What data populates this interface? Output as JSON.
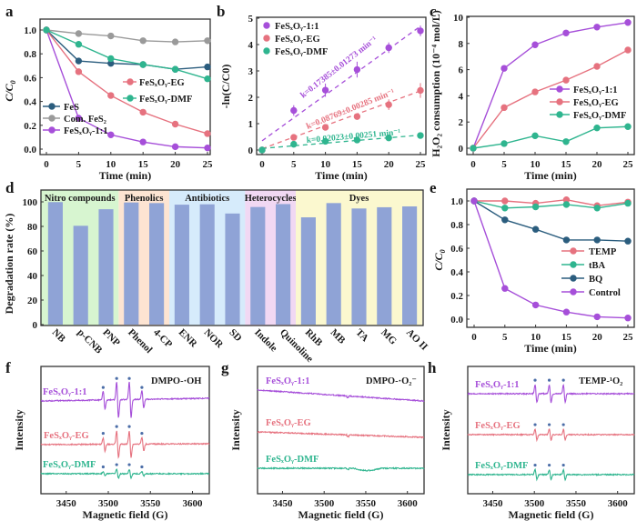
{
  "figure": {
    "panels": [
      "a",
      "b",
      "c",
      "d",
      "e",
      "f",
      "g",
      "h"
    ]
  },
  "colors": {
    "FeS": "#2b5d7e",
    "ComFeS2": "#9a9a9a",
    "FeSxOy_1_1": "#a64fd9",
    "FeSxOy_EG": "#e6727f",
    "FeSxOy_DMF": "#2fb58f",
    "bar": "#8fa3d6",
    "group_nitro": "#d7f5d0",
    "group_phenolics": "#fde4d2",
    "group_antibiotics": "#d6ebfb",
    "group_heterocycles": "#f1d8f3",
    "group_dyes": "#fbf8cf"
  },
  "chart_data": [
    {
      "panel": "a",
      "type": "line",
      "xlabel": "Time (min)",
      "ylabel": "C/C0",
      "xlim": [
        0,
        25
      ],
      "ylim": [
        0,
        1.0
      ],
      "xticks": [
        "0",
        "5",
        "10",
        "15",
        "20",
        "25"
      ],
      "yticks": [
        "0.0",
        "0.2",
        "0.4",
        "0.6",
        "0.8",
        "1.0"
      ],
      "x": [
        0,
        5,
        10,
        15,
        20,
        25
      ],
      "series": [
        {
          "name": "FeS",
          "key": "FeS",
          "values": [
            1.0,
            0.74,
            0.72,
            0.71,
            0.67,
            0.69
          ]
        },
        {
          "name": "Com. FeS2",
          "key": "ComFeS2",
          "values": [
            1.0,
            0.97,
            0.95,
            0.91,
            0.9,
            0.91
          ]
        },
        {
          "name": "FeSxOy-1:1",
          "key": "FeSxOy_1_1",
          "values": [
            1.0,
            0.26,
            0.12,
            0.06,
            0.02,
            0.01
          ]
        },
        {
          "name": "FeSxOy-EG",
          "key": "FeSxOy_EG",
          "values": [
            1.0,
            0.65,
            0.45,
            0.31,
            0.21,
            0.13
          ]
        },
        {
          "name": "FeSxOy-DMF",
          "key": "FeSxOy_DMF",
          "values": [
            1.0,
            0.88,
            0.76,
            0.71,
            0.67,
            0.59
          ]
        }
      ],
      "legend_left": [
        "FeS",
        "Com. FeS₂",
        "FeSₓOᵧ-1:1"
      ],
      "legend_right": [
        "FeSₓOᵧ-EG",
        "FeSₓOᵧ-DMF"
      ]
    },
    {
      "panel": "b",
      "type": "scatter",
      "xlabel": "Time (min)",
      "ylabel": "-ln(C/C0)",
      "xlim": [
        0,
        25
      ],
      "ylim": [
        0,
        5
      ],
      "xticks": [
        "0",
        "5",
        "10",
        "15",
        "20",
        "25"
      ],
      "yticks": [
        "0",
        "1",
        "2",
        "3",
        "4",
        "5"
      ],
      "x": [
        0,
        5,
        10,
        15,
        20,
        25
      ],
      "series": [
        {
          "name": "FeSxOy-1:1",
          "key": "FeSxOy_1_1",
          "values": [
            0,
            1.5,
            2.27,
            3.05,
            3.88,
            4.52
          ],
          "errors": [
            0,
            0.2,
            0.25,
            0.3,
            0.2,
            0.2
          ],
          "fit": {
            "k": 0.17385,
            "intercept": 0.35
          },
          "annotation": "k=0.17385±0.01273 min⁻¹"
        },
        {
          "name": "FeSxOy-EG",
          "key": "FeSxOy_EG",
          "values": [
            0,
            0.48,
            0.86,
            1.27,
            1.72,
            2.26
          ],
          "errors": [
            0,
            0.08,
            0.1,
            0.1,
            0.2,
            0.28
          ],
          "fit": {
            "k": 0.08769,
            "intercept": 0.05
          },
          "annotation": "k=0.08769±0.00285 min⁻¹"
        },
        {
          "name": "FeSxOy-DMF",
          "key": "FeSxOy_DMF",
          "values": [
            0,
            0.22,
            0.33,
            0.38,
            0.46,
            0.55
          ],
          "errors": [
            0,
            0.04,
            0.04,
            0.04,
            0.04,
            0.04
          ],
          "fit": {
            "k": 0.02023,
            "intercept": 0.06
          },
          "annotation": "k=0.02023±0.00251 min⁻¹"
        }
      ],
      "legend": [
        "FeSₓOᵧ-1:1",
        "FeSₓOᵧ-EG",
        "FeSₓOᵧ-DMF"
      ]
    },
    {
      "panel": "c",
      "type": "line",
      "xlabel": "Time (min)",
      "ylabel": "H₂O₂ consumption (10⁻⁴ mol/L)",
      "xlim": [
        0,
        25
      ],
      "ylim": [
        0,
        10
      ],
      "xticks": [
        "0",
        "5",
        "10",
        "15",
        "20",
        "25"
      ],
      "yticks": [
        "0",
        "2",
        "4",
        "6",
        "8",
        "10"
      ],
      "x": [
        0,
        5,
        10,
        15,
        20,
        25
      ],
      "series": [
        {
          "name": "FeSxOy-1:1",
          "key": "FeSxOy_1_1",
          "values": [
            0,
            6.1,
            7.9,
            8.8,
            9.25,
            9.6
          ]
        },
        {
          "name": "FeSxOy-EG",
          "key": "FeSxOy_EG",
          "values": [
            0,
            3.1,
            4.3,
            5.2,
            6.25,
            7.5
          ]
        },
        {
          "name": "FeSxOy-DMF",
          "key": "FeSxOy_DMF",
          "values": [
            0,
            0.35,
            0.95,
            0.5,
            1.55,
            1.65
          ]
        }
      ],
      "legend": [
        "FeSₓOᵧ-1:1",
        "FeSₓOᵧ-EG",
        "FeSₓOᵧ-DMF"
      ]
    },
    {
      "panel": "d",
      "type": "bar",
      "ylabel": "Degradation rate (%)",
      "ylim": [
        0,
        110
      ],
      "yticks": [
        "0",
        "20",
        "40",
        "60",
        "80",
        "100"
      ],
      "categories": [
        "NB",
        "p-CNB",
        "PNP",
        "Phenol",
        "4-CP",
        "ENR",
        "NOR",
        "SD",
        "Indole",
        "Quinoline",
        "RhB",
        "MB",
        "TA",
        "MG",
        "AO II"
      ],
      "values": [
        99.8,
        80.5,
        94,
        99.5,
        99,
        97.7,
        98,
        90.5,
        95.8,
        98.2,
        87.4,
        99,
        94.6,
        95.6,
        96.3
      ],
      "groups": [
        {
          "label": "Nitro compounds",
          "start": 0,
          "end": 2,
          "key": "group_nitro"
        },
        {
          "label": "Phenolics",
          "start": 3,
          "end": 4,
          "key": "group_phenolics"
        },
        {
          "label": "Antibiotics",
          "start": 5,
          "end": 7,
          "key": "group_antibiotics"
        },
        {
          "label": "Heterocycles",
          "start": 8,
          "end": 9,
          "key": "group_heterocycles"
        },
        {
          "label": "Dyes",
          "start": 10,
          "end": 14,
          "key": "group_dyes"
        }
      ]
    },
    {
      "panel": "e",
      "type": "line",
      "xlabel": "Time (min)",
      "ylabel": "C/C0",
      "xlim": [
        0,
        25
      ],
      "ylim": [
        0,
        1.0
      ],
      "xticks": [
        "0",
        "5",
        "10",
        "15",
        "20",
        "25"
      ],
      "yticks": [
        "0.0",
        "0.2",
        "0.4",
        "0.6",
        "0.8",
        "1.0"
      ],
      "x": [
        0,
        5,
        10,
        15,
        20,
        25
      ],
      "series": [
        {
          "name": "TEMP",
          "key": "FeSxOy_EG",
          "values": [
            1.0,
            1.0,
            0.98,
            1.01,
            0.96,
            0.99
          ]
        },
        {
          "name": "tBA",
          "key": "FeSxOy_DMF",
          "values": [
            1.0,
            0.94,
            0.95,
            0.97,
            0.94,
            0.98
          ]
        },
        {
          "name": "BQ",
          "key": "FeS",
          "values": [
            1.0,
            0.84,
            0.76,
            0.67,
            0.67,
            0.66
          ]
        },
        {
          "name": "Control",
          "key": "FeSxOy_1_1",
          "values": [
            1.0,
            0.26,
            0.12,
            0.06,
            0.02,
            0.01
          ]
        }
      ],
      "legend": [
        "TEMP",
        "tBA",
        "BQ",
        "Control"
      ]
    },
    {
      "panel": "f",
      "type": "line",
      "title": "DMPO-·OH",
      "xlabel": "Magnetic field (G)",
      "ylabel": "Intensity",
      "xlim": [
        3420,
        3620
      ],
      "xticks": [
        "3450",
        "3500",
        "3550",
        "3600"
      ],
      "peaks_G": [
        3495,
        3511,
        3526,
        3541
      ],
      "peak_ratio": [
        1,
        2,
        2,
        1
      ],
      "series": [
        {
          "name": "FeSₓOᵧ-1:1",
          "key": "FeSxOy_1_1",
          "amplitude": 1.0
        },
        {
          "name": "FeSₓOᵧ-EG",
          "key": "FeSxOy_EG",
          "amplitude": 0.75
        },
        {
          "name": "FeSₓOᵧ-DMF",
          "key": "FeSxOy_DMF",
          "amplitude": 0.25
        }
      ]
    },
    {
      "panel": "g",
      "type": "line",
      "title": "DMPO-·O₂⁻",
      "xlabel": "Magnetic field (G)",
      "ylabel": "Intensity",
      "xlim": [
        3420,
        3620
      ],
      "xticks": [
        "3450",
        "3500",
        "3550",
        "3600"
      ],
      "series": [
        {
          "name": "FeSₓOᵧ-1:1",
          "key": "FeSxOy_1_1",
          "amplitude": 0
        },
        {
          "name": "FeSₓOᵧ-EG",
          "key": "FeSxOy_EG",
          "amplitude": 0
        },
        {
          "name": "FeSₓOᵧ-DMF",
          "key": "FeSxOy_DMF",
          "amplitude": 0
        }
      ]
    },
    {
      "panel": "h",
      "type": "line",
      "title": "TEMP-¹O₂",
      "xlabel": "Magnetic field (G)",
      "ylabel": "Intensity",
      "xlim": [
        3420,
        3620
      ],
      "xticks": [
        "3450",
        "3500",
        "3550",
        "3600"
      ],
      "peaks_G": [
        3502,
        3519,
        3536
      ],
      "peak_ratio": [
        1,
        1,
        1
      ],
      "series": [
        {
          "name": "FeSₓOᵧ-1:1",
          "key": "FeSxOy_1_1",
          "amplitude": 1.0
        },
        {
          "name": "FeSₓOᵧ-EG",
          "key": "FeSxOy_EG",
          "amplitude": 0.6
        },
        {
          "name": "FeSₓOᵧ-DMF",
          "key": "FeSxOy_DMF",
          "amplitude": 0.55
        }
      ]
    }
  ]
}
